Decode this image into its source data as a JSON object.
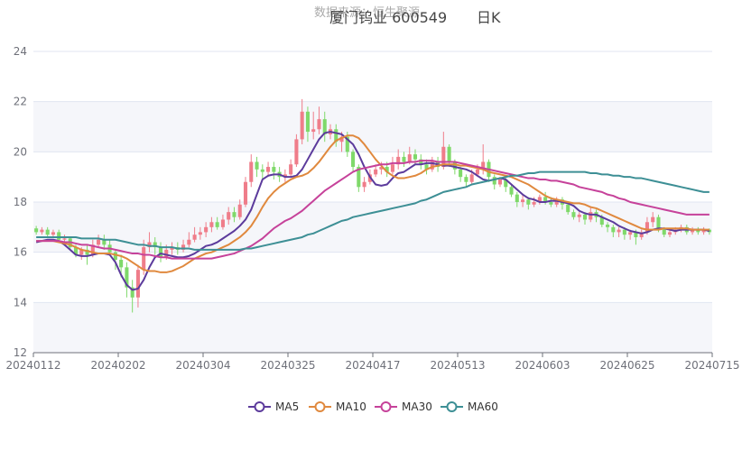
{
  "header": {
    "subtitle": "数据来源：恒生聚源",
    "title": "厦门钨业 600549",
    "period": "日K"
  },
  "chart_data": {
    "type": "line",
    "title": "厦门钨业 600549 日K",
    "y_ticks": [
      12,
      14,
      16,
      18,
      20,
      22,
      24
    ],
    "ylim": [
      12,
      24
    ],
    "x_tick_labels": [
      "20240112",
      "20240202",
      "20240304",
      "20240325",
      "20240417",
      "20240513",
      "20240603",
      "20240625",
      "20240715"
    ],
    "x_count": 120,
    "grid": "horizontal",
    "legend_position": "bottom",
    "candles": [
      [
        16.95,
        16.8,
        17.05,
        16.7
      ],
      [
        16.8,
        16.9,
        17.0,
        16.7
      ],
      [
        16.9,
        16.7,
        17.0,
        16.6
      ],
      [
        16.7,
        16.8,
        16.9,
        16.6
      ],
      [
        16.8,
        16.5,
        16.9,
        16.4
      ],
      [
        16.5,
        16.55,
        16.7,
        16.35
      ],
      [
        16.55,
        16.2,
        16.6,
        16.1
      ],
      [
        16.2,
        15.9,
        16.3,
        15.8
      ],
      [
        15.9,
        16.1,
        16.2,
        15.7
      ],
      [
        16.1,
        15.9,
        16.3,
        15.5
      ],
      [
        15.9,
        16.3,
        16.5,
        15.8
      ],
      [
        16.3,
        16.5,
        16.7,
        16.2
      ],
      [
        16.5,
        16.3,
        16.7,
        16.1
      ],
      [
        16.3,
        16.0,
        16.5,
        15.9
      ],
      [
        16.0,
        15.7,
        16.1,
        15.3
      ],
      [
        15.7,
        15.4,
        15.9,
        15.0
      ],
      [
        15.4,
        14.6,
        15.6,
        14.2
      ],
      [
        14.6,
        14.2,
        14.9,
        13.6
      ],
      [
        14.2,
        15.3,
        15.5,
        13.8
      ],
      [
        15.3,
        16.2,
        16.5,
        15.1
      ],
      [
        16.2,
        16.4,
        16.8,
        16.0
      ],
      [
        16.4,
        16.2,
        16.6,
        15.9
      ],
      [
        16.2,
        15.8,
        16.4,
        15.6
      ],
      [
        15.8,
        16.1,
        16.3,
        15.7
      ],
      [
        16.1,
        16.2,
        16.4,
        15.9
      ],
      [
        16.2,
        16.1,
        16.4,
        15.9
      ],
      [
        16.1,
        16.3,
        16.5,
        16.0
      ],
      [
        16.3,
        16.5,
        16.8,
        16.2
      ],
      [
        16.5,
        16.7,
        17.0,
        16.4
      ],
      [
        16.7,
        16.8,
        17.0,
        16.5
      ],
      [
        16.8,
        17.0,
        17.2,
        16.6
      ],
      [
        17.0,
        17.2,
        17.4,
        16.8
      ],
      [
        17.2,
        17.0,
        17.4,
        16.9
      ],
      [
        17.0,
        17.3,
        17.5,
        16.9
      ],
      [
        17.3,
        17.6,
        17.8,
        17.1
      ],
      [
        17.6,
        17.4,
        17.8,
        17.2
      ],
      [
        17.4,
        17.9,
        18.1,
        17.3
      ],
      [
        17.9,
        18.8,
        19.0,
        17.8
      ],
      [
        18.8,
        19.6,
        19.9,
        18.6
      ],
      [
        19.6,
        19.3,
        19.8,
        19.0
      ],
      [
        19.3,
        19.2,
        19.5,
        18.9
      ],
      [
        19.2,
        19.4,
        19.6,
        19.0
      ],
      [
        19.4,
        19.2,
        19.6,
        18.9
      ],
      [
        19.2,
        19.0,
        19.4,
        18.8
      ],
      [
        19.0,
        19.1,
        19.3,
        18.8
      ],
      [
        19.1,
        19.5,
        19.7,
        19.0
      ],
      [
        19.5,
        20.5,
        20.7,
        19.4
      ],
      [
        20.5,
        21.6,
        22.1,
        20.3
      ],
      [
        21.6,
        20.8,
        21.8,
        20.4
      ],
      [
        20.8,
        20.9,
        21.6,
        20.5
      ],
      [
        20.9,
        21.3,
        21.8,
        20.7
      ],
      [
        21.3,
        20.7,
        21.6,
        20.4
      ],
      [
        20.7,
        20.9,
        21.1,
        20.5
      ],
      [
        20.9,
        20.4,
        21.1,
        20.2
      ],
      [
        20.4,
        20.6,
        20.8,
        20.0
      ],
      [
        20.6,
        20.0,
        20.8,
        19.8
      ],
      [
        20.0,
        19.4,
        20.1,
        19.2
      ],
      [
        19.4,
        18.6,
        19.5,
        18.4
      ],
      [
        18.6,
        18.8,
        19.0,
        18.4
      ],
      [
        18.8,
        19.1,
        19.3,
        18.7
      ],
      [
        19.1,
        19.3,
        19.5,
        19.0
      ],
      [
        19.3,
        19.4,
        19.6,
        19.1
      ],
      [
        19.4,
        19.2,
        19.6,
        19.0
      ],
      [
        19.2,
        19.5,
        19.8,
        19.1
      ],
      [
        19.5,
        19.8,
        20.1,
        19.3
      ],
      [
        19.8,
        19.6,
        20.0,
        19.4
      ],
      [
        19.6,
        19.9,
        20.2,
        19.5
      ],
      [
        19.9,
        19.7,
        20.1,
        19.5
      ],
      [
        19.7,
        19.5,
        19.9,
        19.3
      ],
      [
        19.5,
        19.3,
        19.7,
        19.1
      ],
      [
        19.3,
        19.6,
        19.8,
        19.2
      ],
      [
        19.6,
        19.4,
        19.8,
        19.2
      ],
      [
        19.4,
        20.2,
        20.8,
        19.3
      ],
      [
        20.2,
        19.6,
        20.3,
        19.4
      ],
      [
        19.6,
        19.3,
        19.7,
        19.1
      ],
      [
        19.3,
        19.0,
        19.4,
        18.8
      ],
      [
        19.0,
        18.8,
        19.1,
        18.6
      ],
      [
        18.8,
        19.1,
        19.3,
        18.7
      ],
      [
        19.1,
        19.3,
        19.5,
        19.0
      ],
      [
        19.3,
        19.6,
        20.3,
        19.1
      ],
      [
        19.6,
        19.0,
        19.7,
        18.8
      ],
      [
        19.0,
        18.7,
        19.1,
        18.5
      ],
      [
        18.7,
        18.9,
        19.0,
        18.6
      ],
      [
        18.9,
        18.6,
        19.0,
        18.4
      ],
      [
        18.6,
        18.3,
        18.7,
        18.2
      ],
      [
        18.3,
        18.0,
        18.4,
        17.8
      ],
      [
        18.0,
        18.1,
        18.3,
        17.8
      ],
      [
        18.1,
        17.9,
        18.2,
        17.7
      ],
      [
        17.9,
        18.0,
        18.2,
        17.8
      ],
      [
        18.0,
        18.2,
        18.3,
        17.9
      ],
      [
        18.2,
        18.0,
        18.4,
        17.9
      ],
      [
        18.0,
        17.9,
        18.2,
        17.8
      ],
      [
        17.9,
        18.1,
        18.2,
        17.8
      ],
      [
        18.1,
        17.9,
        18.2,
        17.7
      ],
      [
        17.9,
        17.6,
        18.0,
        17.5
      ],
      [
        17.6,
        17.4,
        17.7,
        17.3
      ],
      [
        17.4,
        17.5,
        17.6,
        17.2
      ],
      [
        17.5,
        17.3,
        17.6,
        17.1
      ],
      [
        17.3,
        17.6,
        17.8,
        17.2
      ],
      [
        17.6,
        17.4,
        17.7,
        17.2
      ],
      [
        17.4,
        17.1,
        17.5,
        17.0
      ],
      [
        17.1,
        17.0,
        17.2,
        16.8
      ],
      [
        17.0,
        16.8,
        17.1,
        16.6
      ],
      [
        16.8,
        16.9,
        17.0,
        16.6
      ],
      [
        16.9,
        16.7,
        17.0,
        16.5
      ],
      [
        16.7,
        16.8,
        16.9,
        16.5
      ],
      [
        16.8,
        16.6,
        16.9,
        16.3
      ],
      [
        16.6,
        16.8,
        16.9,
        16.5
      ],
      [
        16.8,
        17.2,
        17.4,
        16.7
      ],
      [
        17.2,
        17.4,
        17.6,
        17.0
      ],
      [
        17.4,
        16.9,
        17.5,
        16.8
      ],
      [
        16.9,
        16.7,
        17.0,
        16.6
      ],
      [
        16.7,
        16.8,
        16.9,
        16.6
      ],
      [
        16.8,
        16.9,
        17.0,
        16.7
      ],
      [
        16.9,
        17.0,
        17.1,
        16.8
      ],
      [
        17.0,
        16.8,
        17.1,
        16.7
      ],
      [
        16.8,
        16.9,
        17.0,
        16.7
      ],
      [
        16.9,
        16.8,
        17.0,
        16.7
      ],
      [
        16.8,
        16.9,
        17.0,
        16.7
      ],
      [
        16.9,
        16.8,
        16.95,
        16.7
      ]
    ],
    "up_color": "#ef7d8a",
    "down_color": "#7fd96a",
    "series": [
      {
        "name": "MA5",
        "color": "#5c3b9c",
        "values": [
          16.4,
          16.45,
          16.5,
          16.5,
          16.45,
          16.3,
          16.1,
          15.9,
          15.85,
          15.85,
          15.9,
          15.95,
          15.95,
          15.9,
          15.6,
          15.1,
          14.7,
          14.5,
          14.55,
          14.9,
          15.4,
          15.8,
          15.95,
          15.9,
          15.85,
          15.8,
          15.8,
          15.85,
          15.95,
          16.1,
          16.25,
          16.3,
          16.4,
          16.55,
          16.7,
          16.85,
          17.05,
          17.3,
          17.7,
          18.3,
          18.9,
          19.05,
          19.1,
          19.1,
          19.0,
          19.0,
          19.05,
          19.3,
          19.7,
          20.1,
          20.5,
          20.75,
          20.8,
          20.75,
          20.7,
          20.5,
          20.3,
          19.9,
          19.4,
          19.0,
          18.7,
          18.65,
          18.7,
          18.95,
          19.15,
          19.2,
          19.35,
          19.5,
          19.5,
          19.55,
          19.55,
          19.5,
          19.45,
          19.45,
          19.4,
          19.35,
          19.3,
          19.2,
          19.05,
          18.9,
          18.85,
          18.9,
          18.95,
          18.9,
          18.7,
          18.5,
          18.3,
          18.15,
          18.1,
          18.0,
          18.0,
          18.05,
          18.05,
          18.0,
          17.95,
          17.85,
          17.65,
          17.55,
          17.5,
          17.5,
          17.4,
          17.3,
          17.2,
          17.05,
          16.95,
          16.85,
          16.8,
          16.75,
          16.8,
          16.9,
          16.95,
          16.95,
          16.9,
          16.85,
          16.9,
          16.9,
          16.9,
          16.9,
          16.9,
          16.85
        ]
      },
      {
        "name": "MA10",
        "color": "#e0893e",
        "values": [
          16.45,
          16.45,
          16.45,
          16.45,
          16.4,
          16.35,
          16.3,
          16.2,
          16.1,
          16.05,
          16.0,
          15.95,
          15.95,
          15.95,
          15.9,
          15.85,
          15.75,
          15.6,
          15.45,
          15.3,
          15.25,
          15.25,
          15.2,
          15.2,
          15.25,
          15.35,
          15.45,
          15.6,
          15.75,
          15.85,
          15.95,
          16.0,
          16.1,
          16.2,
          16.3,
          16.45,
          16.6,
          16.8,
          17.05,
          17.4,
          17.8,
          18.15,
          18.4,
          18.6,
          18.75,
          18.9,
          19.0,
          19.05,
          19.15,
          19.35,
          19.6,
          19.9,
          20.2,
          20.45,
          20.55,
          20.65,
          20.65,
          20.55,
          20.3,
          20.0,
          19.7,
          19.45,
          19.2,
          19.05,
          18.95,
          18.95,
          19.0,
          19.05,
          19.15,
          19.3,
          19.4,
          19.45,
          19.5,
          19.5,
          19.5,
          19.45,
          19.45,
          19.4,
          19.35,
          19.3,
          19.2,
          19.15,
          19.1,
          19.05,
          19.0,
          18.9,
          18.8,
          18.7,
          18.55,
          18.4,
          18.25,
          18.15,
          18.1,
          18.05,
          18.0,
          17.95,
          17.95,
          17.9,
          17.8,
          17.75,
          17.65,
          17.55,
          17.45,
          17.35,
          17.25,
          17.15,
          17.05,
          16.95,
          16.9,
          16.9,
          16.9,
          16.95,
          16.95,
          16.95,
          16.95,
          16.95,
          16.9,
          16.9,
          16.9,
          16.9
        ]
      },
      {
        "name": "MA30",
        "color": "#c6429a",
        "values": [
          16.45,
          16.45,
          16.45,
          16.45,
          16.45,
          16.4,
          16.4,
          16.35,
          16.3,
          16.3,
          16.25,
          16.2,
          16.15,
          16.15,
          16.1,
          16.05,
          16.0,
          15.95,
          15.95,
          15.9,
          15.9,
          15.85,
          15.8,
          15.8,
          15.75,
          15.75,
          15.75,
          15.75,
          15.75,
          15.75,
          15.75,
          15.75,
          15.8,
          15.85,
          15.9,
          15.95,
          16.05,
          16.15,
          16.25,
          16.4,
          16.55,
          16.75,
          16.95,
          17.1,
          17.25,
          17.35,
          17.5,
          17.65,
          17.85,
          18.05,
          18.25,
          18.45,
          18.6,
          18.75,
          18.9,
          19.05,
          19.2,
          19.3,
          19.35,
          19.4,
          19.45,
          19.5,
          19.5,
          19.55,
          19.55,
          19.55,
          19.6,
          19.6,
          19.65,
          19.65,
          19.65,
          19.6,
          19.6,
          19.6,
          19.6,
          19.55,
          19.5,
          19.45,
          19.4,
          19.35,
          19.3,
          19.25,
          19.2,
          19.15,
          19.1,
          19.05,
          19.0,
          18.95,
          18.95,
          18.9,
          18.9,
          18.85,
          18.85,
          18.8,
          18.75,
          18.7,
          18.6,
          18.55,
          18.5,
          18.45,
          18.4,
          18.3,
          18.25,
          18.15,
          18.1,
          18.0,
          17.95,
          17.9,
          17.85,
          17.8,
          17.75,
          17.7,
          17.65,
          17.6,
          17.55,
          17.5,
          17.5,
          17.5,
          17.5,
          17.5
        ]
      },
      {
        "name": "MA60",
        "color": "#3d8f95",
        "values": [
          16.6,
          16.6,
          16.6,
          16.6,
          16.6,
          16.6,
          16.6,
          16.6,
          16.55,
          16.55,
          16.55,
          16.55,
          16.5,
          16.5,
          16.5,
          16.45,
          16.4,
          16.35,
          16.3,
          16.3,
          16.25,
          16.25,
          16.2,
          16.2,
          16.2,
          16.15,
          16.15,
          16.15,
          16.1,
          16.1,
          16.1,
          16.1,
          16.1,
          16.1,
          16.1,
          16.1,
          16.1,
          16.15,
          16.15,
          16.2,
          16.25,
          16.3,
          16.35,
          16.4,
          16.45,
          16.5,
          16.55,
          16.6,
          16.7,
          16.75,
          16.85,
          16.95,
          17.05,
          17.15,
          17.25,
          17.3,
          17.4,
          17.45,
          17.5,
          17.55,
          17.6,
          17.65,
          17.7,
          17.75,
          17.8,
          17.85,
          17.9,
          17.95,
          18.05,
          18.1,
          18.2,
          18.3,
          18.4,
          18.45,
          18.5,
          18.55,
          18.6,
          18.7,
          18.75,
          18.8,
          18.85,
          18.9,
          18.95,
          19.0,
          19.05,
          19.05,
          19.1,
          19.15,
          19.15,
          19.2,
          19.2,
          19.2,
          19.2,
          19.2,
          19.2,
          19.2,
          19.2,
          19.2,
          19.15,
          19.15,
          19.1,
          19.1,
          19.05,
          19.05,
          19.0,
          19.0,
          18.95,
          18.95,
          18.9,
          18.85,
          18.8,
          18.75,
          18.7,
          18.65,
          18.6,
          18.55,
          18.5,
          18.45,
          18.4,
          18.4
        ]
      }
    ]
  }
}
